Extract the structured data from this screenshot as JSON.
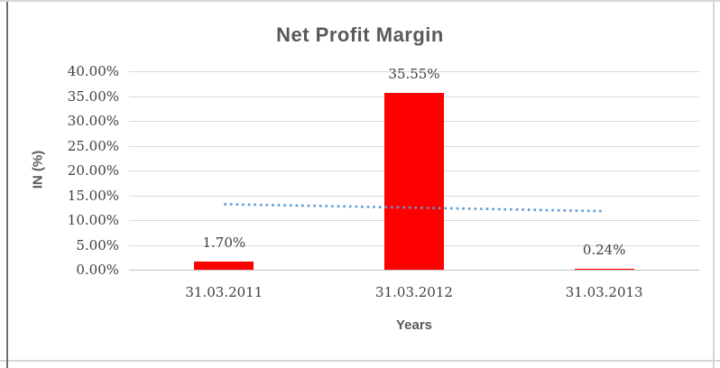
{
  "window": {
    "background": "#FFFFFF",
    "frame_border_color": "#D5D5D5",
    "frame_left_border_color": "#6E6E6E"
  },
  "chart_data": {
    "type": "bar",
    "title": "Net Profit Margin",
    "xlabel": "Years",
    "ylabel": "IN (%)",
    "categories": [
      "31.03.2011",
      "31.03.2012",
      "31.03.2013"
    ],
    "values": [
      1.7,
      35.55,
      0.24
    ],
    "data_labels": [
      "1.70%",
      "35.55%",
      "0.24%"
    ],
    "ylim": [
      0,
      40
    ],
    "yticks": [
      {
        "value": 0,
        "label": "0.00%"
      },
      {
        "value": 5,
        "label": "5.00%"
      },
      {
        "value": 10,
        "label": "10.00%"
      },
      {
        "value": 15,
        "label": "15.00%"
      },
      {
        "value": 20,
        "label": "20.00%"
      },
      {
        "value": 25,
        "label": "25.00%"
      },
      {
        "value": 30,
        "label": "30.00%"
      },
      {
        "value": 35,
        "label": "35.00%"
      },
      {
        "value": 40,
        "label": "40.00%"
      }
    ],
    "grid": true,
    "legend": "none",
    "bar_color": "#FF0000",
    "gridline_color": "#D9D9D9",
    "zero_axis_color": "#BFBFBF",
    "tick_label_color": "#404040",
    "title_color": "#595959",
    "trendline": {
      "type": "linear",
      "style": "dotted",
      "color": "#5B9BD5",
      "values": [
        13.2,
        12.5,
        11.8
      ]
    }
  }
}
